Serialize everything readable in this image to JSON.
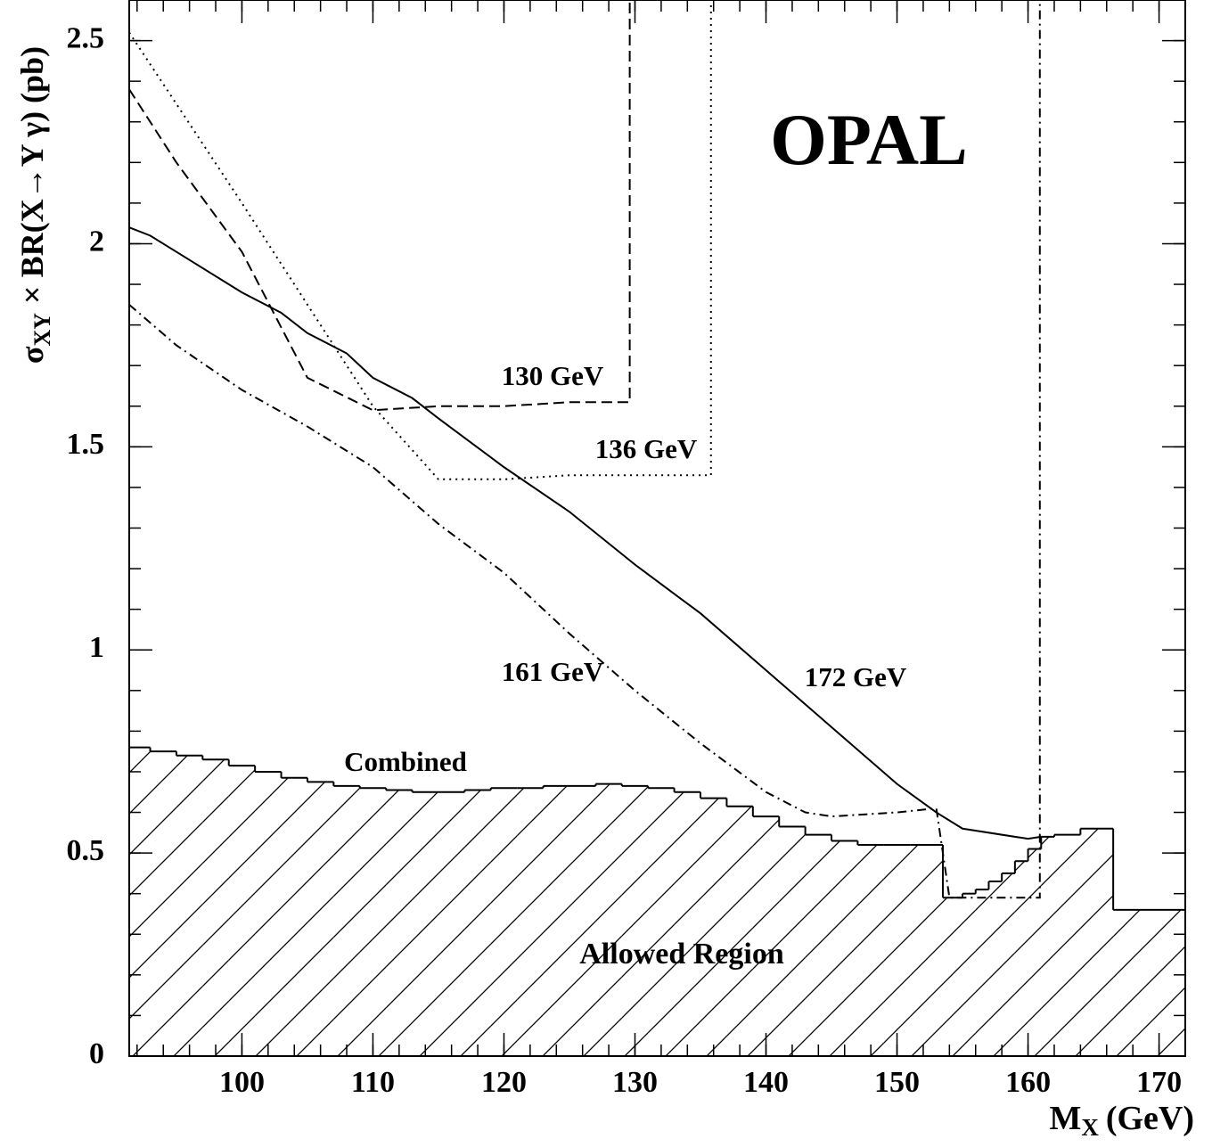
{
  "chart_data": {
    "type": "line",
    "title": "OPAL",
    "x_label": {
      "symbol": "M",
      "subscript": "X",
      "unit": "(GeV)"
    },
    "y_label": {
      "symbol": "σ",
      "subscript": "XY",
      "rest": "× BR(X→Y γ)  (pb)"
    },
    "xlim": [
      91.4,
      172
    ],
    "ylim": [
      0,
      2.6
    ],
    "xticks": [
      100,
      110,
      120,
      130,
      140,
      150,
      160,
      170
    ],
    "yticks": [
      0,
      0.5,
      1,
      1.5,
      2,
      2.5
    ],
    "series": [
      {
        "name": "172 GeV",
        "color": "#000000",
        "dash": "solid",
        "x": [
          91.4,
          93,
          95,
          100,
          103,
          105,
          108,
          110,
          113,
          115,
          120,
          125,
          130,
          135,
          140,
          145,
          150,
          153,
          155,
          160,
          161
        ],
        "values": [
          2.04,
          2.02,
          1.98,
          1.88,
          1.83,
          1.78,
          1.73,
          1.67,
          1.62,
          1.57,
          1.45,
          1.34,
          1.21,
          1.09,
          0.95,
          0.81,
          0.67,
          0.6,
          0.56,
          0.535,
          0.54
        ]
      },
      {
        "name": "130 GeV",
        "color": "#000000",
        "dash": "dashed",
        "x": [
          91.4,
          95,
          100,
          105,
          110,
          115,
          120,
          125,
          129.6,
          129.6
        ],
        "values": [
          2.38,
          2.2,
          1.98,
          1.67,
          1.59,
          1.6,
          1.6,
          1.61,
          1.61,
          2.6
        ]
      },
      {
        "name": "136 GeV",
        "color": "#000000",
        "dash": "dotted",
        "x": [
          91.4,
          100,
          105,
          110,
          115,
          120,
          125,
          130,
          135.8,
          135.8
        ],
        "values": [
          2.52,
          2.1,
          1.85,
          1.6,
          1.42,
          1.42,
          1.43,
          1.43,
          1.43,
          2.6
        ]
      },
      {
        "name": "161 GeV",
        "color": "#000000",
        "dash": "dashdot",
        "x": [
          91.4,
          95,
          100,
          105,
          110,
          115,
          120,
          125,
          130,
          135,
          140,
          143,
          145,
          150,
          153,
          154,
          158,
          160.9,
          160.9
        ],
        "values": [
          1.85,
          1.75,
          1.64,
          1.55,
          1.45,
          1.31,
          1.19,
          1.04,
          0.9,
          0.77,
          0.65,
          0.6,
          0.59,
          0.6,
          0.61,
          0.39,
          0.39,
          0.39,
          2.6
        ]
      }
    ],
    "combined": {
      "name": "Combined",
      "color": "#000000",
      "bins": [
        91.4,
        93,
        95,
        97,
        99,
        101,
        103,
        105,
        107,
        109,
        111,
        113,
        115,
        117,
        119,
        121,
        123,
        125,
        127,
        129,
        131,
        133,
        135,
        137,
        139,
        141,
        143,
        145,
        147,
        149,
        151,
        153.5,
        155,
        156,
        157,
        158,
        159,
        160,
        161,
        162,
        164,
        166.5,
        172
      ],
      "values": [
        0.76,
        0.75,
        0.74,
        0.73,
        0.715,
        0.7,
        0.685,
        0.675,
        0.665,
        0.66,
        0.655,
        0.65,
        0.65,
        0.655,
        0.66,
        0.66,
        0.665,
        0.665,
        0.67,
        0.665,
        0.66,
        0.65,
        0.635,
        0.615,
        0.59,
        0.565,
        0.545,
        0.53,
        0.52,
        0.52,
        0.52,
        0.39,
        0.4,
        0.41,
        0.43,
        0.45,
        0.48,
        0.51,
        0.54,
        0.545,
        0.56,
        0.36
      ]
    },
    "annotation": "Allowed Region"
  }
}
